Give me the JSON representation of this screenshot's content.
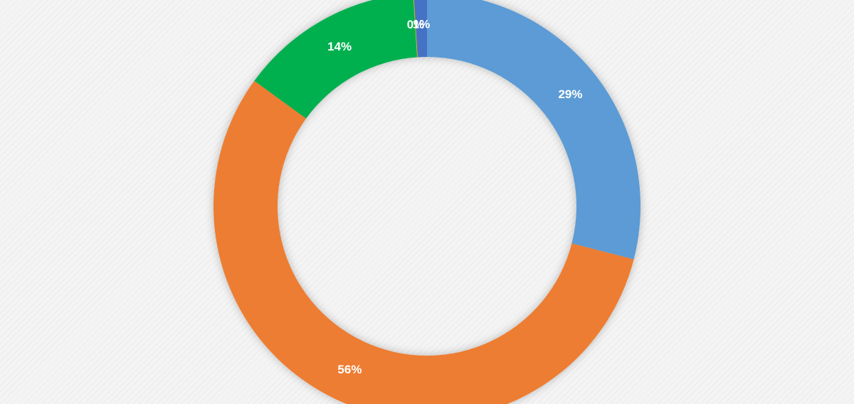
{
  "chart_data": {
    "type": "donut",
    "values": [
      29,
      56,
      14,
      0,
      1
    ],
    "value_labels": [
      "29%",
      "56%",
      "14%",
      "0%",
      "1%"
    ],
    "colors": [
      "#5b9bd5",
      "#ed7d31",
      "#00b050",
      "#ffc000",
      "#4472c4"
    ]
  }
}
